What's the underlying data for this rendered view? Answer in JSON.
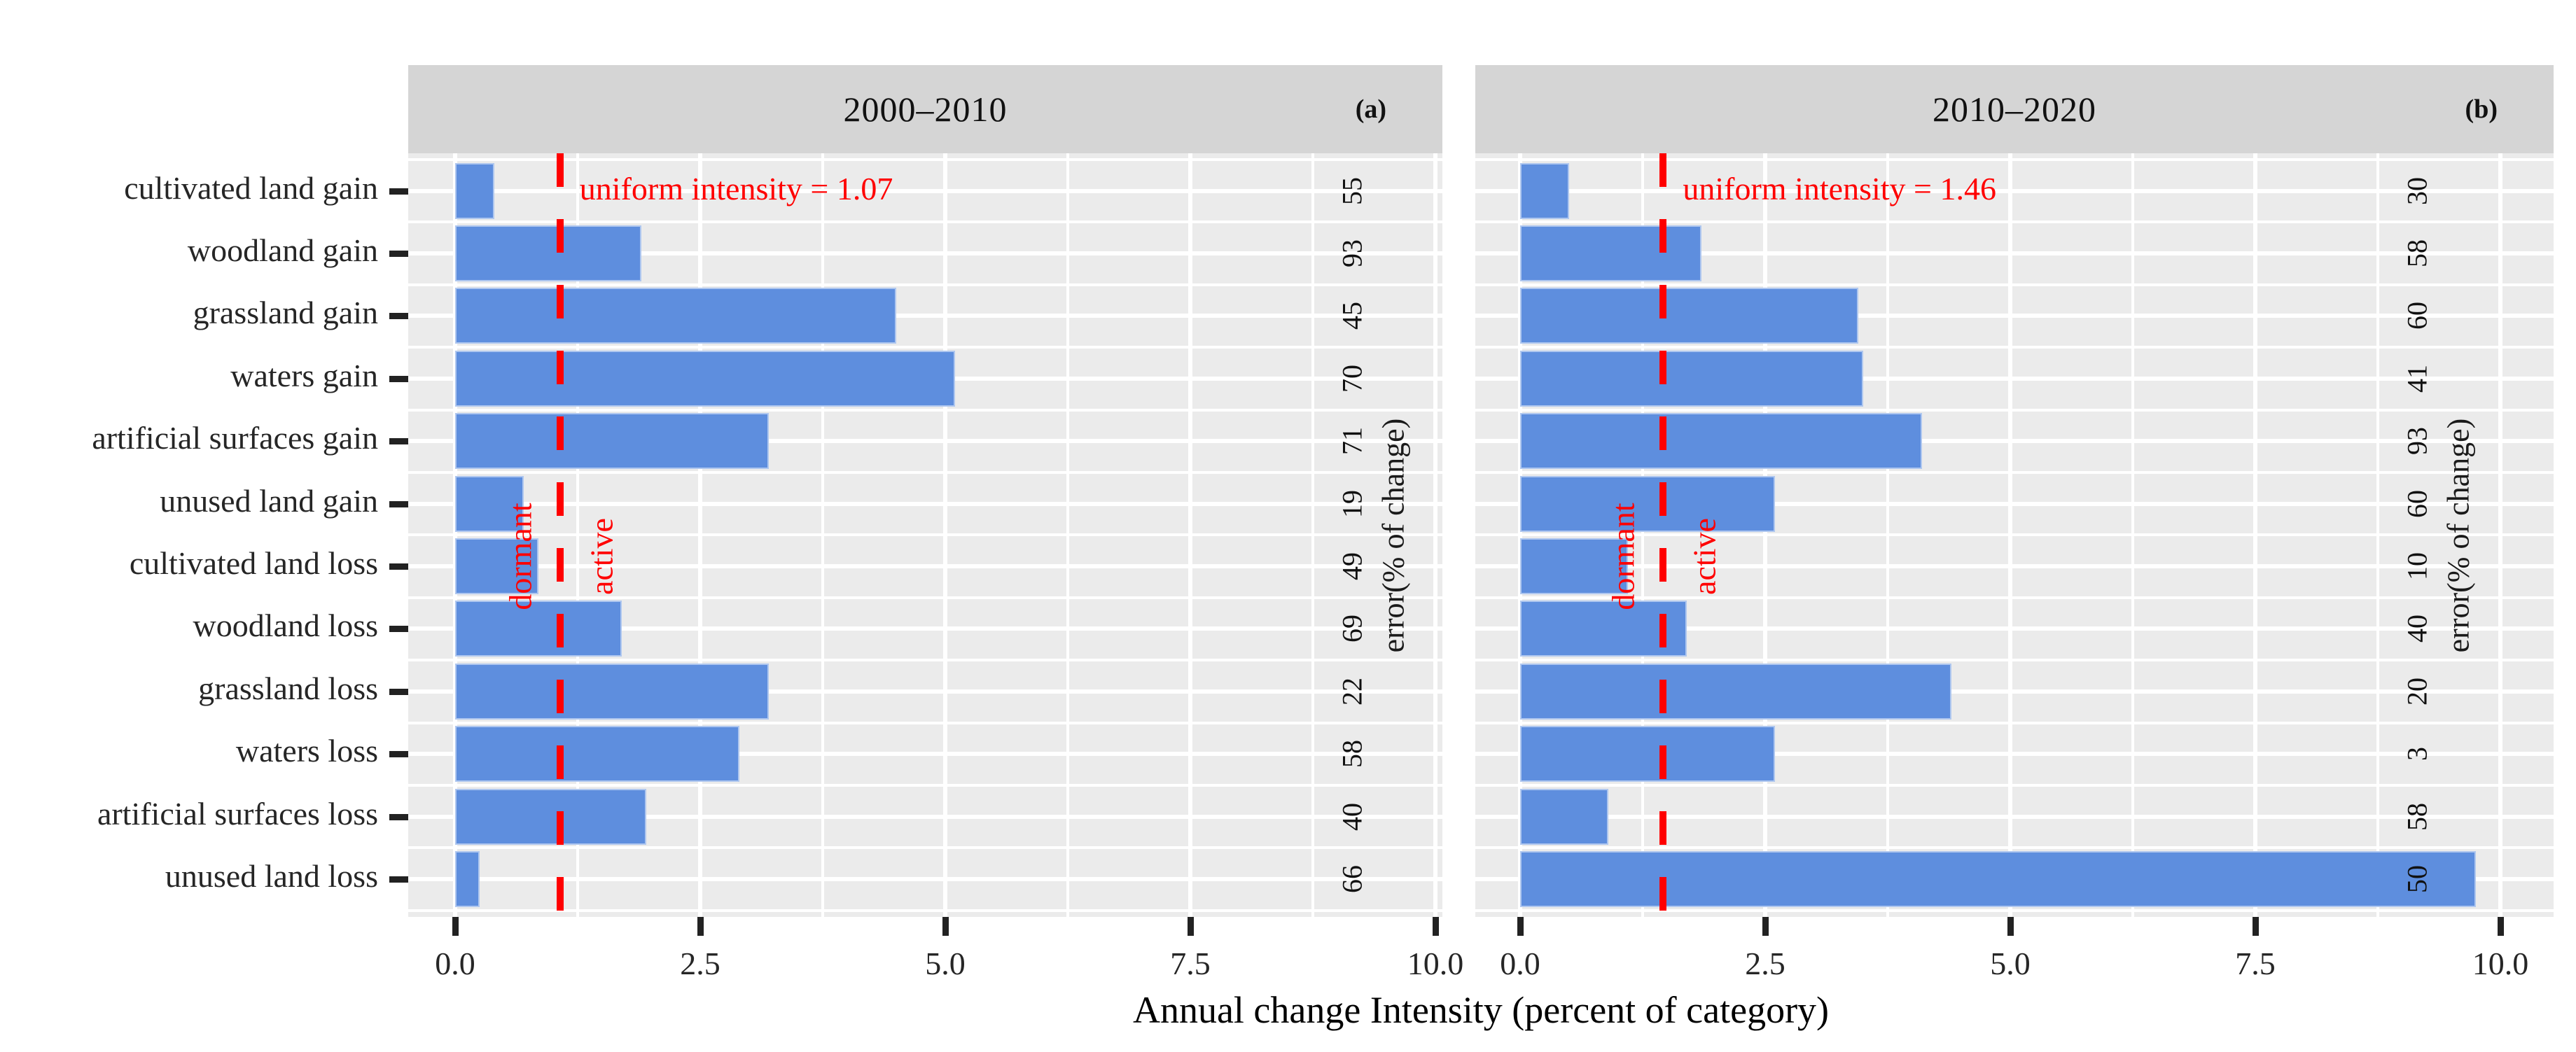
{
  "page": {
    "xlabel": "Annual change Intensity (percent of category)",
    "right_axis_label": "error(% of change)",
    "x_tick_labels": [
      "0.0",
      "2.5",
      "5.0",
      "7.5",
      "10.0"
    ],
    "categories": [
      "cultivated land gain",
      "woodland gain",
      "grassland gain",
      "waters gain",
      "artificial surfaces gain",
      "unused land gain",
      "cultivated land loss",
      "woodland loss",
      "grassland loss",
      "waters loss",
      "artificial surfaces loss",
      "unused land loss"
    ],
    "panels": [
      {
        "tag": "(a)",
        "title": "2000–2010",
        "annotation": "uniform intensity = 1.07",
        "uniform_intensity": 1.07,
        "dormant": "dormant",
        "active": "active",
        "values": [
          0.4,
          1.9,
          4.5,
          5.1,
          3.2,
          0.7,
          0.85,
          1.7,
          3.2,
          2.9,
          1.95,
          0.25
        ],
        "errors": [
          "55",
          "93",
          "45",
          "70",
          "71",
          "19",
          "49",
          "69",
          "22",
          "58",
          "40",
          "66"
        ]
      },
      {
        "tag": "(b)",
        "title": "2010–2020",
        "annotation": "uniform intensity = 1.46",
        "uniform_intensity": 1.46,
        "dormant": "dormant",
        "active": "active",
        "values": [
          0.5,
          1.85,
          3.45,
          3.5,
          4.1,
          2.6,
          1.1,
          1.7,
          4.4,
          2.6,
          0.9,
          9.75
        ],
        "errors": [
          "30",
          "58",
          "60",
          "41",
          "93",
          "60",
          "10",
          "40",
          "20",
          "3",
          "58",
          "50"
        ]
      }
    ],
    "colors": {
      "bar": "#5e8ede",
      "panel_bg": "#ebebeb",
      "strip_bg": "#d5d5d5",
      "grid": "#ffffff",
      "accent_red": "#ff0000",
      "text": "#1a1a1a"
    }
  },
  "chart_data": [
    {
      "type": "bar",
      "orientation": "horizontal",
      "facet": "2000–2010",
      "tag": "(a)",
      "title": "2000–2010",
      "categories": [
        "cultivated land gain",
        "woodland gain",
        "grassland gain",
        "waters gain",
        "artificial surfaces gain",
        "unused land gain",
        "cultivated land loss",
        "woodland loss",
        "grassland loss",
        "waters loss",
        "artificial surfaces loss",
        "unused land loss"
      ],
      "series": [
        {
          "name": "Annual change Intensity (percent of category)",
          "values": [
            0.4,
            1.9,
            4.5,
            5.1,
            3.2,
            0.7,
            0.85,
            1.7,
            3.2,
            2.9,
            1.95,
            0.25
          ]
        },
        {
          "name": "error(% of change)",
          "values": [
            55,
            93,
            45,
            70,
            71,
            19,
            49,
            69,
            22,
            58,
            40,
            66
          ]
        }
      ],
      "uniform_intensity": 1.07,
      "annotations": [
        "uniform intensity = 1.07",
        "dormant",
        "active"
      ],
      "xlabel": "Annual change Intensity (percent of category)",
      "xlim": [
        0,
        10
      ],
      "xticks": [
        0,
        2.5,
        5,
        7.5,
        10
      ],
      "grid": true,
      "legend": false,
      "bar_color": "#5e8ede",
      "reference_line_color": "#ff0000"
    },
    {
      "type": "bar",
      "orientation": "horizontal",
      "facet": "2010–2020",
      "tag": "(b)",
      "title": "2010–2020",
      "categories": [
        "cultivated land gain",
        "woodland gain",
        "grassland gain",
        "waters gain",
        "artificial surfaces gain",
        "unused land gain",
        "cultivated land loss",
        "woodland loss",
        "grassland loss",
        "waters loss",
        "artificial surfaces loss",
        "unused land loss"
      ],
      "series": [
        {
          "name": "Annual change Intensity (percent of category)",
          "values": [
            0.5,
            1.85,
            3.45,
            3.5,
            4.1,
            2.6,
            1.1,
            1.7,
            4.4,
            2.6,
            0.9,
            9.75
          ]
        },
        {
          "name": "error(% of change)",
          "values": [
            30,
            58,
            60,
            41,
            93,
            60,
            10,
            40,
            20,
            3,
            58,
            50
          ]
        }
      ],
      "uniform_intensity": 1.46,
      "annotations": [
        "uniform intensity = 1.46",
        "dormant",
        "active"
      ],
      "xlabel": "Annual change Intensity (percent of category)",
      "xlim": [
        0,
        10
      ],
      "xticks": [
        0,
        2.5,
        5,
        7.5,
        10
      ],
      "grid": true,
      "legend": false,
      "bar_color": "#5e8ede",
      "reference_line_color": "#ff0000"
    }
  ]
}
